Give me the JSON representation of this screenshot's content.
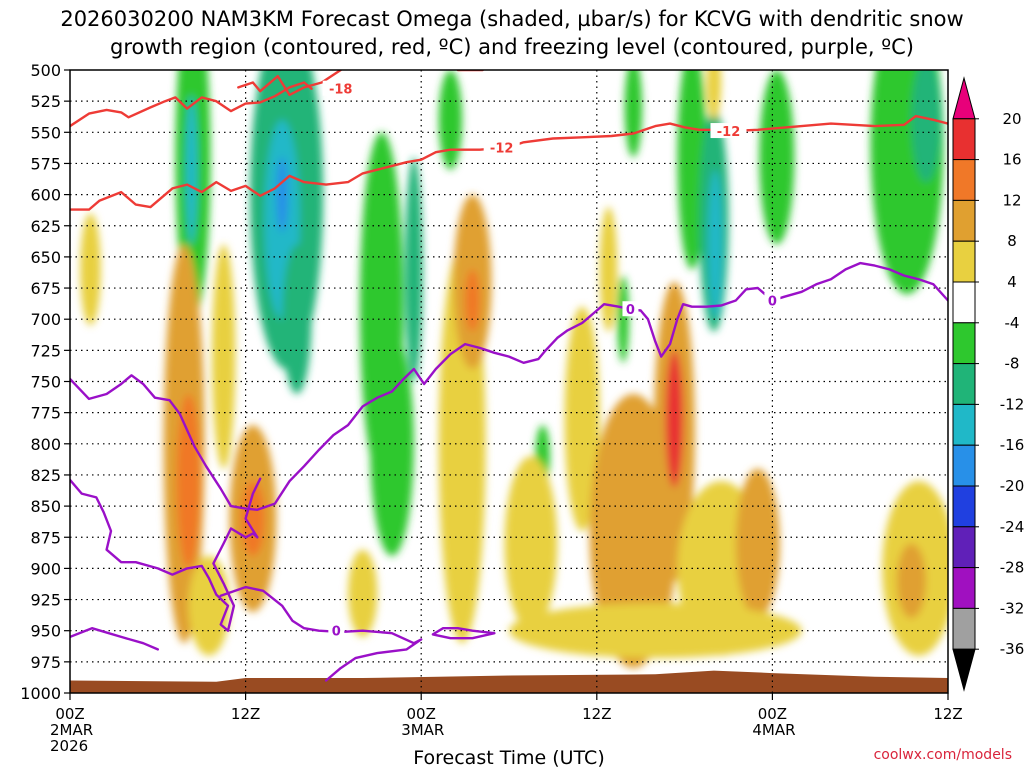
{
  "chart_data": {
    "type": "heatmap",
    "title_line1": "2026030200 NAM3KM Forecast Omega (shaded, µbar/s) for KCVG with dendritic snow",
    "title_line2": "growth region (contoured, red, ºC) and freezing level (contoured, purple, ºC)",
    "xlabel": "Forecast Time (UTC)",
    "ylabel": "",
    "x_range_hours": [
      0,
      60
    ],
    "y_range_mb": [
      500,
      1000
    ],
    "y_ticks": [
      "500",
      "525",
      "550",
      "575",
      "600",
      "625",
      "650",
      "675",
      "700",
      "725",
      "750",
      "775",
      "800",
      "825",
      "850",
      "875",
      "900",
      "925",
      "950",
      "975",
      "1000"
    ],
    "x_ticks": [
      {
        "hour": 0,
        "label": "00Z",
        "sub1": "2MAR",
        "sub2": "2026"
      },
      {
        "hour": 12,
        "label": "12Z",
        "sub1": "",
        "sub2": ""
      },
      {
        "hour": 24,
        "label": "00Z",
        "sub1": "3MAR",
        "sub2": ""
      },
      {
        "hour": 36,
        "label": "12Z",
        "sub1": "",
        "sub2": ""
      },
      {
        "hour": 48,
        "label": "00Z",
        "sub1": "4MAR",
        "sub2": ""
      },
      {
        "hour": 60,
        "label": "12Z",
        "sub1": "",
        "sub2": ""
      }
    ],
    "colorbar_levels": [
      "20",
      "16",
      "12",
      "8",
      "4",
      "-4",
      "-8",
      "-12",
      "-16",
      "-20",
      "-24",
      "-28",
      "-32",
      "-36"
    ],
    "colorbar_colors": [
      "#e8007a",
      "#e83030",
      "#f07828",
      "#e0a030",
      "#e8d040",
      "#ffffff",
      "#2ec82e",
      "#20b478",
      "#20b8c8",
      "#2890e8",
      "#2040e0",
      "#6020b8",
      "#a010c0",
      "#a0a0a0",
      "#000000"
    ],
    "positive_blobs": [
      {
        "t": 1.4,
        "p": 660,
        "rt": 0.7,
        "rp": 45,
        "v": 4
      },
      {
        "t": 7.8,
        "p": 800,
        "rt": 1.4,
        "rp": 160,
        "v": 8
      },
      {
        "t": 8.1,
        "p": 830,
        "rt": 0.8,
        "rp": 70,
        "v": 14
      },
      {
        "t": 12.5,
        "p": 860,
        "rt": 1.6,
        "rp": 75,
        "v": 8
      },
      {
        "t": 12.5,
        "p": 860,
        "rt": 0.8,
        "rp": 30,
        "v": 13
      },
      {
        "t": 10.5,
        "p": 730,
        "rt": 0.8,
        "rp": 90,
        "v": 4
      },
      {
        "t": 9.5,
        "p": 930,
        "rt": 1.4,
        "rp": 40,
        "v": 4
      },
      {
        "t": 26.8,
        "p": 800,
        "rt": 1.6,
        "rp": 160,
        "v": 5
      },
      {
        "t": 27.5,
        "p": 670,
        "rt": 1.3,
        "rp": 70,
        "v": 8
      },
      {
        "t": 27.5,
        "p": 685,
        "rt": 0.5,
        "rp": 25,
        "v": 13
      },
      {
        "t": 31.5,
        "p": 880,
        "rt": 1.8,
        "rp": 70,
        "v": 4
      },
      {
        "t": 20.0,
        "p": 920,
        "rt": 1.0,
        "rp": 35,
        "v": 4
      },
      {
        "t": 35.0,
        "p": 780,
        "rt": 1.2,
        "rp": 90,
        "v": 4
      },
      {
        "t": 38.5,
        "p": 870,
        "rt": 3.0,
        "rp": 110,
        "v": 8
      },
      {
        "t": 36.8,
        "p": 660,
        "rt": 0.6,
        "rp": 50,
        "v": 4
      },
      {
        "t": 41.3,
        "p": 790,
        "rt": 1.4,
        "rp": 120,
        "v": 8
      },
      {
        "t": 41.3,
        "p": 780,
        "rt": 0.6,
        "rp": 55,
        "v": 18
      },
      {
        "t": 44.5,
        "p": 900,
        "rt": 3.0,
        "rp": 70,
        "v": 5
      },
      {
        "t": 47.0,
        "p": 880,
        "rt": 1.5,
        "rp": 60,
        "v": 10
      },
      {
        "t": 58.0,
        "p": 900,
        "rt": 2.5,
        "rp": 70,
        "v": 5
      },
      {
        "t": 57.5,
        "p": 910,
        "rt": 1.0,
        "rp": 30,
        "v": 10
      },
      {
        "t": 44.0,
        "p": 510,
        "rt": 0.5,
        "rp": 30,
        "v": 5
      },
      {
        "t": 40.0,
        "p": 950,
        "rt": 10.0,
        "rp": 22,
        "v": 5
      }
    ],
    "negative_blobs": [
      {
        "t": 8.4,
        "p": 570,
        "rt": 1.2,
        "rp": 130,
        "v": -6
      },
      {
        "t": 8.3,
        "p": 580,
        "rt": 0.4,
        "rp": 60,
        "v": -13
      },
      {
        "t": 14.8,
        "p": 600,
        "rt": 2.5,
        "rp": 140,
        "v": -8
      },
      {
        "t": 14.5,
        "p": 620,
        "rt": 1.2,
        "rp": 80,
        "v": -13
      },
      {
        "t": 14.5,
        "p": 600,
        "rt": 0.4,
        "rp": 30,
        "v": -17
      },
      {
        "t": 15.5,
        "p": 700,
        "rt": 1.0,
        "rp": 60,
        "v": -10
      },
      {
        "t": 21.3,
        "p": 690,
        "rt": 1.5,
        "rp": 140,
        "v": -6
      },
      {
        "t": 22.0,
        "p": 800,
        "rt": 1.5,
        "rp": 90,
        "v": -6
      },
      {
        "t": 23.5,
        "p": 660,
        "rt": 0.6,
        "rp": 90,
        "v": -10
      },
      {
        "t": 26.0,
        "p": 540,
        "rt": 0.8,
        "rp": 40,
        "v": -6
      },
      {
        "t": 32.3,
        "p": 810,
        "rt": 0.5,
        "rp": 25,
        "v": -6
      },
      {
        "t": 38.5,
        "p": 530,
        "rt": 0.6,
        "rp": 40,
        "v": -6
      },
      {
        "t": 37.8,
        "p": 700,
        "rt": 0.4,
        "rp": 35,
        "v": -6
      },
      {
        "t": 42.5,
        "p": 570,
        "rt": 1.0,
        "rp": 90,
        "v": -6
      },
      {
        "t": 44.0,
        "p": 620,
        "rt": 1.0,
        "rp": 90,
        "v": -8
      },
      {
        "t": 44.1,
        "p": 640,
        "rt": 0.5,
        "rp": 60,
        "v": -12
      },
      {
        "t": 48.3,
        "p": 570,
        "rt": 1.2,
        "rp": 70,
        "v": -6
      },
      {
        "t": 57.2,
        "p": 560,
        "rt": 2.5,
        "rp": 120,
        "v": -6
      },
      {
        "t": 58.5,
        "p": 540,
        "rt": 1.0,
        "rp": 50,
        "v": -10
      }
    ],
    "red_contours": [
      {
        "label": "-18",
        "label_at": [
          18.5,
          515
        ],
        "points": [
          [
            11.5,
            514
          ],
          [
            12.5,
            510
          ],
          [
            13.0,
            517
          ],
          [
            14.2,
            505
          ],
          [
            15.0,
            520
          ],
          [
            16.0,
            514
          ],
          [
            17.2,
            510
          ],
          [
            18.5,
            500
          ]
        ]
      },
      {
        "label": "-18",
        "label_at": null,
        "points": [
          [
            26.5,
            500
          ],
          [
            28.2,
            500
          ]
        ]
      },
      {
        "label": "-12",
        "label_at": [
          29.5,
          562
        ],
        "points": [
          [
            0,
            545
          ],
          [
            1.3,
            535
          ],
          [
            2.5,
            532
          ],
          [
            3.5,
            534
          ],
          [
            4.0,
            538
          ],
          [
            5.5,
            530
          ],
          [
            6.5,
            525
          ],
          [
            7.2,
            522
          ],
          [
            8.0,
            531
          ],
          [
            9.0,
            522
          ],
          [
            10.0,
            525
          ],
          [
            11.0,
            533
          ],
          [
            12.0,
            527
          ],
          [
            13.0,
            526
          ],
          [
            14.0,
            521
          ],
          [
            15.0,
            514
          ],
          [
            16.0,
            510
          ],
          [
            16.5,
            515
          ]
        ]
      },
      {
        "label": "-12",
        "label_at": null,
        "points": [
          [
            0,
            612
          ],
          [
            1.3,
            612
          ],
          [
            2.0,
            605
          ],
          [
            3.5,
            598
          ],
          [
            4.5,
            608
          ],
          [
            5.5,
            610
          ],
          [
            7.0,
            595
          ],
          [
            8.0,
            592
          ],
          [
            9.0,
            598
          ],
          [
            10.0,
            590
          ],
          [
            11.0,
            597
          ],
          [
            12.0,
            593
          ],
          [
            13.0,
            601
          ],
          [
            14.0,
            595
          ],
          [
            15.0,
            585
          ],
          [
            16.0,
            590
          ],
          [
            17.5,
            592
          ],
          [
            19.0,
            590
          ],
          [
            20.0,
            583
          ],
          [
            21.0,
            580
          ],
          [
            23.0,
            574
          ],
          [
            24.0,
            572
          ],
          [
            25.0,
            566
          ],
          [
            26.0,
            564
          ],
          [
            28.0,
            564
          ],
          [
            30.0,
            562
          ],
          [
            31.0,
            558
          ],
          [
            33.0,
            555
          ],
          [
            35.0,
            554
          ],
          [
            37.0,
            553
          ],
          [
            38.5,
            551
          ],
          [
            40.0,
            545
          ],
          [
            41.0,
            543
          ],
          [
            42.0,
            546
          ],
          [
            43.0,
            548
          ],
          [
            44.0,
            548
          ],
          [
            45.0,
            549
          ],
          [
            47.0,
            548
          ],
          [
            49.0,
            546
          ],
          [
            52.0,
            543
          ],
          [
            55.0,
            545
          ],
          [
            57.0,
            544
          ],
          [
            57.8,
            537
          ],
          [
            59.0,
            540
          ],
          [
            60.0,
            543
          ]
        ]
      },
      {
        "label": "-12",
        "label_at": [
          45.0,
          549
        ],
        "points": []
      }
    ],
    "purple_contours": [
      {
        "label": "0",
        "label_at": [
          38.3,
          692
        ],
        "points": [
          [
            0,
            748
          ],
          [
            1.3,
            764
          ],
          [
            2.5,
            760
          ],
          [
            3.5,
            752
          ],
          [
            4.2,
            745
          ],
          [
            5.0,
            752
          ],
          [
            5.8,
            763
          ],
          [
            6.8,
            765
          ],
          [
            7.5,
            776
          ],
          [
            8.5,
            802
          ],
          [
            9.3,
            818
          ],
          [
            10.3,
            836
          ],
          [
            11.0,
            850
          ],
          [
            12.0,
            852
          ],
          [
            12.8,
            853
          ],
          [
            14.0,
            848
          ],
          [
            15.0,
            830
          ],
          [
            16.0,
            818
          ],
          [
            17.0,
            805
          ],
          [
            18.0,
            793
          ],
          [
            19.0,
            785
          ],
          [
            20.0,
            770
          ],
          [
            21.0,
            763
          ],
          [
            22.0,
            758
          ],
          [
            22.8,
            748
          ],
          [
            23.5,
            740
          ],
          [
            24.2,
            752
          ],
          [
            25.0,
            740
          ],
          [
            26.0,
            728
          ],
          [
            27.0,
            720
          ],
          [
            28.0,
            723
          ],
          [
            29.0,
            727
          ],
          [
            30.0,
            730
          ],
          [
            31.0,
            735
          ],
          [
            32.0,
            732
          ],
          [
            32.5,
            725
          ],
          [
            33.3,
            715
          ],
          [
            34.0,
            709
          ],
          [
            35.0,
            703
          ],
          [
            35.8,
            695
          ],
          [
            36.5,
            688
          ],
          [
            37.5,
            690
          ],
          [
            38.3,
            692
          ],
          [
            39.0,
            693
          ],
          [
            39.5,
            700
          ],
          [
            40.0,
            718
          ],
          [
            40.4,
            730
          ],
          [
            41.0,
            720
          ],
          [
            41.5,
            700
          ],
          [
            41.9,
            688
          ],
          [
            42.5,
            690
          ],
          [
            43.5,
            690
          ],
          [
            44.5,
            689
          ],
          [
            45.5,
            685
          ],
          [
            46.2,
            676
          ],
          [
            47.0,
            675
          ],
          [
            47.5,
            680
          ],
          [
            48.0,
            685
          ],
          [
            48.8,
            682
          ],
          [
            50.0,
            678
          ],
          [
            51.0,
            672
          ],
          [
            52.0,
            668
          ],
          [
            53.0,
            660
          ],
          [
            54.0,
            655
          ],
          [
            55.0,
            657
          ],
          [
            56.0,
            660
          ],
          [
            57.0,
            665
          ],
          [
            58.0,
            668
          ],
          [
            59.0,
            672
          ],
          [
            60.0,
            685
          ]
        ]
      },
      {
        "label": "0",
        "label_at": [
          48.0,
          685
        ],
        "points": []
      },
      {
        "label": "",
        "label_at": null,
        "points": [
          [
            0,
            829
          ],
          [
            0.8,
            840
          ],
          [
            1.8,
            843
          ],
          [
            2.3,
            855
          ],
          [
            2.8,
            870
          ],
          [
            2.5,
            885
          ],
          [
            3.5,
            895
          ],
          [
            4.5,
            895
          ],
          [
            6.0,
            900
          ],
          [
            7.0,
            905
          ],
          [
            8.0,
            900
          ],
          [
            9.0,
            898
          ],
          [
            9.5,
            908
          ],
          [
            10.0,
            921
          ],
          [
            10.8,
            930
          ],
          [
            10.3,
            945
          ],
          [
            10.8,
            950
          ],
          [
            11.2,
            930
          ],
          [
            10.5,
            912
          ],
          [
            9.8,
            896
          ],
          [
            10.5,
            880
          ],
          [
            11.0,
            868
          ],
          [
            12.0,
            875
          ],
          [
            12.5,
            872
          ],
          [
            12.8,
            875
          ],
          [
            12.0,
            860
          ],
          [
            12.5,
            840
          ],
          [
            13.0,
            828
          ]
        ]
      },
      {
        "label": "0",
        "label_at": [
          18.2,
          950
        ],
        "points": [
          [
            10.3,
            922
          ],
          [
            12.0,
            915
          ],
          [
            13.2,
            918
          ],
          [
            14.5,
            930
          ],
          [
            15.2,
            942
          ],
          [
            16.0,
            948
          ],
          [
            17.0,
            950
          ],
          [
            18.5,
            951
          ],
          [
            20.0,
            950
          ],
          [
            22.0,
            952
          ],
          [
            23.5,
            960
          ],
          [
            24.0,
            957
          ],
          [
            23.0,
            965
          ],
          [
            21.0,
            968
          ],
          [
            19.5,
            972
          ],
          [
            18.5,
            980
          ],
          [
            17.5,
            990
          ]
        ]
      },
      {
        "label": "",
        "label_at": null,
        "points": [
          [
            24.8,
            953
          ],
          [
            25.5,
            948
          ],
          [
            26.5,
            948
          ],
          [
            27.5,
            950
          ],
          [
            29.0,
            952
          ],
          [
            27.5,
            956
          ],
          [
            26.0,
            956
          ],
          [
            24.8,
            953
          ]
        ]
      },
      {
        "label": "",
        "label_at": null,
        "points": [
          [
            0,
            955
          ],
          [
            1.5,
            948
          ],
          [
            3.5,
            955
          ],
          [
            5.0,
            960
          ],
          [
            6.0,
            965
          ]
        ]
      }
    ],
    "terrain_color": "#994b22",
    "terrain_profile": [
      [
        0,
        990
      ],
      [
        10,
        991
      ],
      [
        12,
        988
      ],
      [
        20,
        988
      ],
      [
        30,
        986
      ],
      [
        40,
        985
      ],
      [
        44,
        982
      ],
      [
        48,
        984
      ],
      [
        55,
        987
      ],
      [
        60,
        988
      ]
    ],
    "credit": "coolwx.com/models"
  }
}
